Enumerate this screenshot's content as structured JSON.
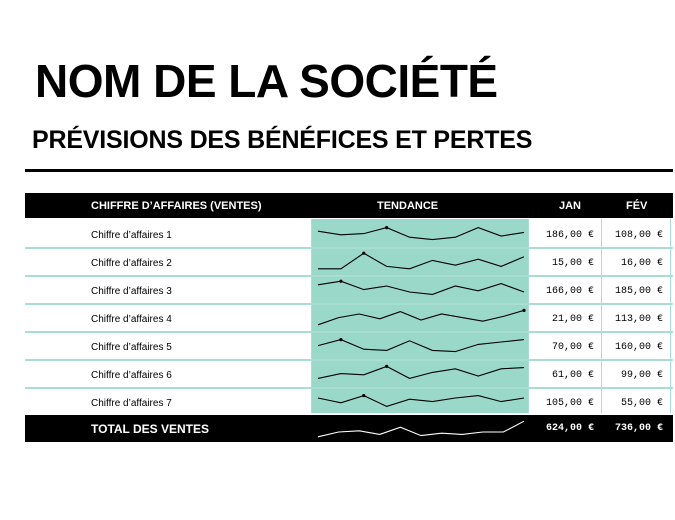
{
  "document": {
    "company": "NOM DE LA SOCIÉTÉ",
    "subtitle": "PRÉVISIONS DES BÉNÉFICES ET PERTES"
  },
  "table": {
    "header": {
      "label": "CHIFFRE D’AFFAIRES (VENTES)",
      "trend": "TENDANCE",
      "jan": "JAN",
      "fev": "FÉV"
    },
    "rows": [
      {
        "label": "Chiffre d’affaires 1",
        "jan": "186,00 €",
        "fev": "108,00 €"
      },
      {
        "label": "Chiffre d’affaires 2",
        "jan": "15,00 €",
        "fev": "16,00 €"
      },
      {
        "label": "Chiffre d’affaires 3",
        "jan": "166,00 €",
        "fev": "185,00 €"
      },
      {
        "label": "Chiffre d’affaires 4",
        "jan": "21,00 €",
        "fev": "113,00 €"
      },
      {
        "label": "Chiffre d’affaires 5",
        "jan": "70,00 €",
        "fev": "160,00 €"
      },
      {
        "label": "Chiffre d’affaires 6",
        "jan": "61,00 €",
        "fev": "99,00 €"
      },
      {
        "label": "Chiffre d’affaires 7",
        "jan": "105,00 €",
        "fev": "55,00 €"
      }
    ],
    "total": {
      "label": "TOTAL DES VENTES",
      "jan": "624,00 €",
      "fev": "736,00 €"
    }
  },
  "colors": {
    "header_bg": "#000000",
    "trend_bg": "#9ad8c9",
    "row_divider": "#a8dfd2",
    "sparkline": "#000000"
  },
  "sparklines": [
    [
      6,
      9,
      8,
      3,
      11,
      13,
      11,
      3,
      10,
      7
    ],
    [
      14,
      14,
      1,
      12,
      14,
      7,
      11,
      6,
      12,
      4
    ],
    [
      4,
      1,
      8,
      5,
      10,
      12,
      5,
      9,
      3,
      10
    ],
    [
      14,
      8,
      5,
      9,
      3,
      10,
      5,
      8,
      11,
      7,
      2
    ],
    [
      8,
      3,
      11,
      12,
      4,
      12,
      13,
      7,
      5,
      3
    ],
    [
      12,
      8,
      9,
      2,
      12,
      7,
      4,
      10,
      4,
      3
    ],
    [
      5,
      9,
      3,
      12,
      6,
      8,
      5,
      3,
      8,
      5
    ],
    [
      14,
      10,
      9,
      12,
      6,
      13,
      11,
      12,
      10,
      10,
      1
    ]
  ]
}
